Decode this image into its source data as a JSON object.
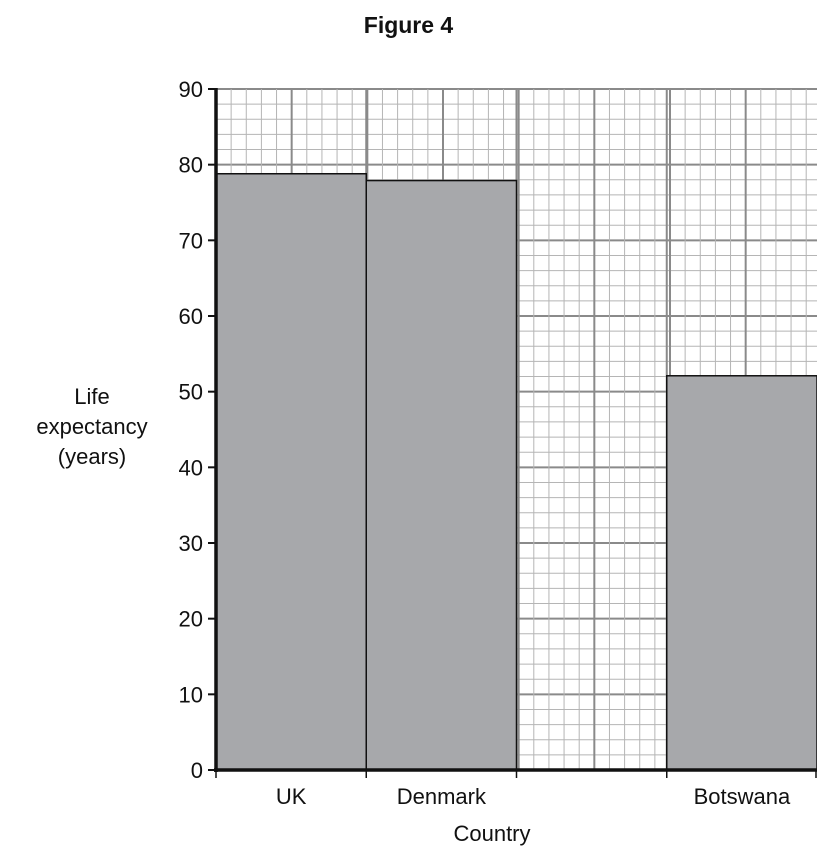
{
  "figure_title": "Figure 4",
  "chart_data": {
    "type": "bar",
    "title": "Figure 4",
    "xlabel": "Country",
    "ylabel": [
      "Life",
      "expectancy",
      "(years)"
    ],
    "categories": [
      "UK",
      "Denmark",
      "",
      "Botswana"
    ],
    "values": [
      78.8,
      77.9,
      null,
      52.1
    ],
    "ylim": [
      0,
      90
    ],
    "yticks": [
      0,
      10,
      20,
      30,
      40,
      50,
      60,
      70,
      80,
      90
    ],
    "grid": true,
    "bar_color": "#a7a8ab"
  }
}
